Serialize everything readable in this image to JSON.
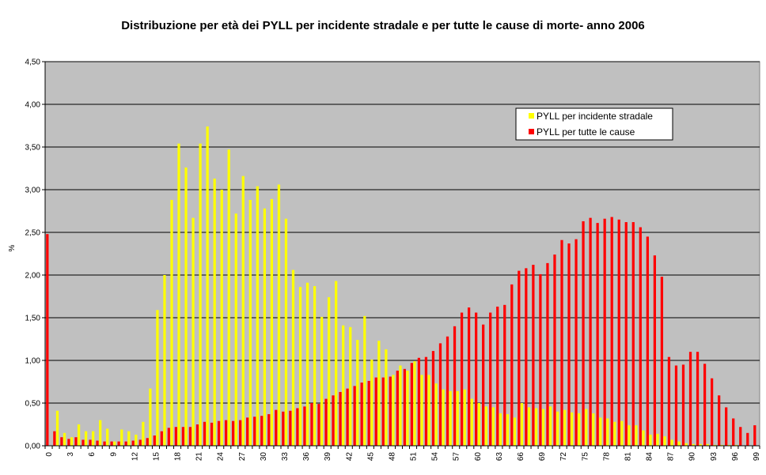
{
  "chart_data": {
    "type": "bar",
    "title": "Distribuzione per età dei PYLL per incidente stradale e per tutte le cause di morte- anno 2006",
    "xlabel": "",
    "ylabel": "%",
    "ylim": [
      0,
      4.5
    ],
    "y_ticks": [
      "0,00",
      "0,50",
      "1,00",
      "1,50",
      "2,00",
      "2,50",
      "3,00",
      "3,50",
      "4,00",
      "4,50"
    ],
    "x_tick_labels": [
      "0",
      "3",
      "6",
      "9",
      "12",
      "15",
      "18",
      "21",
      "24",
      "27",
      "30",
      "33",
      "36",
      "39",
      "42",
      "45",
      "48",
      "51",
      "54",
      "57",
      "60",
      "63",
      "66",
      "69",
      "72",
      "75",
      "78",
      "81",
      "84",
      "87",
      "90",
      "93",
      "96",
      "99"
    ],
    "grid": true,
    "legend_position": "top-right",
    "plot_background": "#c0c0c0",
    "categories": [
      0,
      1,
      2,
      3,
      4,
      5,
      6,
      7,
      8,
      9,
      10,
      11,
      12,
      13,
      14,
      15,
      16,
      17,
      18,
      19,
      20,
      21,
      22,
      23,
      24,
      25,
      26,
      27,
      28,
      29,
      30,
      31,
      32,
      33,
      34,
      35,
      36,
      37,
      38,
      39,
      40,
      41,
      42,
      43,
      44,
      45,
      46,
      47,
      48,
      49,
      50,
      51,
      52,
      53,
      54,
      55,
      56,
      57,
      58,
      59,
      60,
      61,
      62,
      63,
      64,
      65,
      66,
      67,
      68,
      69,
      70,
      71,
      72,
      73,
      74,
      75,
      76,
      77,
      78,
      79,
      80,
      81,
      82,
      83,
      84,
      85,
      86,
      87,
      88,
      89,
      90,
      91,
      92,
      93,
      94,
      95,
      96,
      97,
      98,
      99
    ],
    "series": [
      {
        "name": "PYLL per incidente stradale",
        "color": "#ffff00",
        "values": [
          0.0,
          0.41,
          0.15,
          0.1,
          0.25,
          0.17,
          0.17,
          0.3,
          0.2,
          0.05,
          0.19,
          0.17,
          0.13,
          0.28,
          0.67,
          1.59,
          2.0,
          2.88,
          3.54,
          3.26,
          2.67,
          3.54,
          3.74,
          3.13,
          3.0,
          3.47,
          2.72,
          3.16,
          2.88,
          3.04,
          2.78,
          2.89,
          3.06,
          2.66,
          2.06,
          1.86,
          1.91,
          1.87,
          1.51,
          1.74,
          1.93,
          1.41,
          1.39,
          1.24,
          1.52,
          1.01,
          1.23,
          1.13,
          0.83,
          0.94,
          0.88,
          0.99,
          0.83,
          0.83,
          0.73,
          0.66,
          0.64,
          0.64,
          0.66,
          0.55,
          0.5,
          0.46,
          0.45,
          0.38,
          0.37,
          0.33,
          0.5,
          0.45,
          0.44,
          0.43,
          0.46,
          0.4,
          0.42,
          0.39,
          0.38,
          0.43,
          0.38,
          0.33,
          0.32,
          0.28,
          0.29,
          0.24,
          0.24,
          0.18,
          0.13,
          0.14,
          0.11,
          0.07,
          0.05,
          0.03,
          0.02,
          0.02,
          0.02,
          0.01,
          0.01,
          0.01,
          0.01,
          0.0,
          0.0,
          0.0
        ]
      },
      {
        "name": "PYLL per tutte le cause",
        "color": "#ff0000",
        "values": [
          2.48,
          0.17,
          0.1,
          0.08,
          0.1,
          0.07,
          0.07,
          0.06,
          0.05,
          0.05,
          0.05,
          0.05,
          0.06,
          0.07,
          0.09,
          0.12,
          0.17,
          0.21,
          0.22,
          0.22,
          0.22,
          0.25,
          0.28,
          0.27,
          0.29,
          0.3,
          0.29,
          0.3,
          0.33,
          0.34,
          0.35,
          0.37,
          0.42,
          0.4,
          0.41,
          0.44,
          0.46,
          0.5,
          0.49,
          0.55,
          0.59,
          0.63,
          0.67,
          0.7,
          0.74,
          0.76,
          0.8,
          0.8,
          0.81,
          0.88,
          0.9,
          0.97,
          1.03,
          1.04,
          1.11,
          1.2,
          1.28,
          1.4,
          1.56,
          1.62,
          1.56,
          1.42,
          1.56,
          1.63,
          1.65,
          1.89,
          2.05,
          2.08,
          2.12,
          2.01,
          2.14,
          2.24,
          2.41,
          2.37,
          2.42,
          2.63,
          2.67,
          2.61,
          2.66,
          2.68,
          2.65,
          2.62,
          2.62,
          2.56,
          2.45,
          2.23,
          1.98,
          1.04,
          0.94,
          0.95,
          1.1,
          1.1,
          0.96,
          0.79,
          0.59,
          0.45,
          0.32,
          0.22,
          0.15,
          0.24
        ]
      }
    ]
  }
}
